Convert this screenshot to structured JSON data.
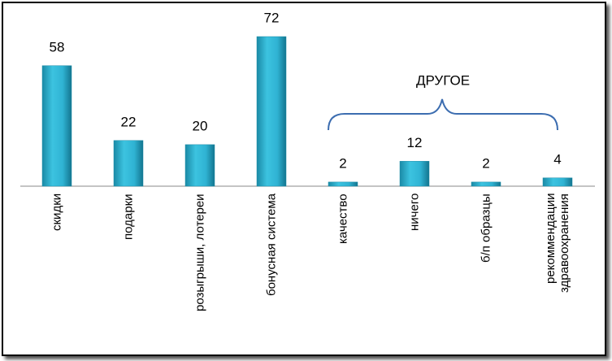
{
  "chart_data": {
    "type": "bar",
    "categories": [
      "скидки",
      "подарки",
      "розыгрыши, лотереи",
      "бонусная система",
      "качество",
      "ничего",
      "б/п образцы",
      "рекоммендации здравоохранения"
    ],
    "values": [
      58,
      22,
      20,
      72,
      2,
      12,
      2,
      4
    ],
    "color": "#2fb3d3",
    "annotation": "ДРУГОЕ"
  }
}
